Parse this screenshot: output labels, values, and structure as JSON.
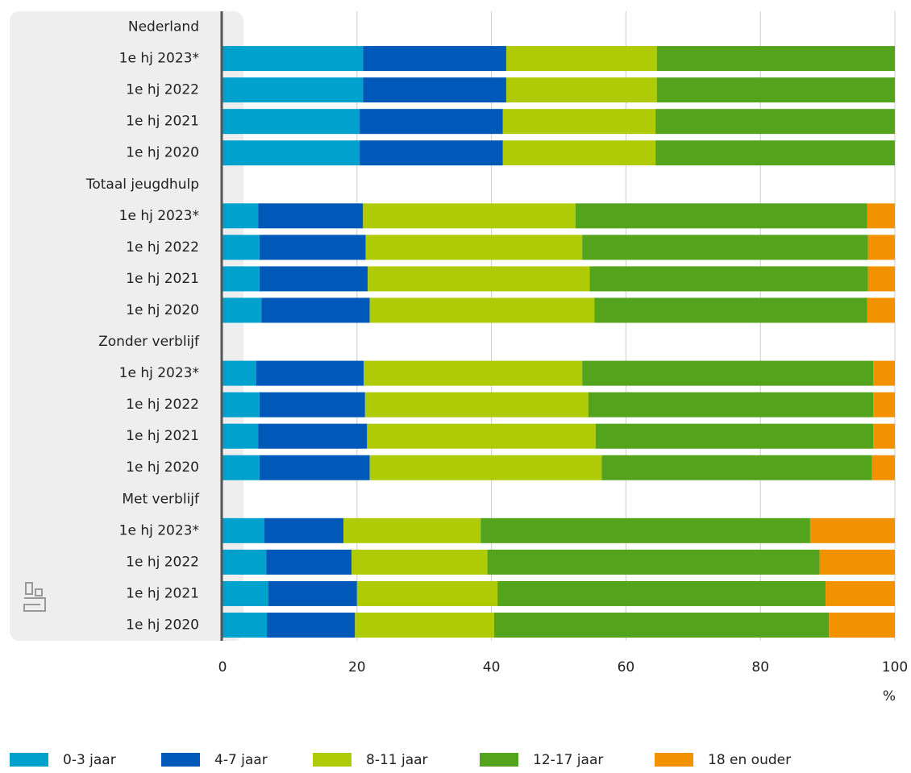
{
  "chart_data": {
    "type": "stacked-barh",
    "categories": [
      "Nederland",
      "1e hj 2023*",
      "1e hj 2022",
      "1e hj 2021",
      "1e hj 2020",
      "Totaal jeugdhulp",
      "1e hj 2023*",
      "1e hj 2022",
      "1e hj 2021",
      "1e hj 2020",
      "Zonder verblijf",
      "1e hj 2023*",
      "1e hj 2022",
      "1e hj 2021",
      "1e hj 2020",
      "Met verblijf",
      "1e hj 2023*",
      "1e hj 2022",
      "1e hj 2021",
      "1e hj 2020"
    ],
    "series": [
      {
        "name": "0-3 jaar",
        "color": "#00a1cd",
        "values": [
          null,
          20.9,
          20.9,
          20.4,
          20.4,
          null,
          5.3,
          5.5,
          5.5,
          5.8,
          null,
          5.0,
          5.5,
          5.3,
          5.5,
          null,
          6.2,
          6.5,
          6.8,
          6.6
        ]
      },
      {
        "name": "4-7 jaar",
        "color": "#0058b8",
        "values": [
          null,
          21.3,
          21.3,
          21.3,
          21.3,
          null,
          15.6,
          15.8,
          16.1,
          16.1,
          null,
          16.0,
          15.7,
          16.2,
          16.4,
          null,
          11.8,
          12.7,
          13.2,
          13.1
        ]
      },
      {
        "name": "8-11 jaar",
        "color": "#afcb05",
        "values": [
          null,
          22.4,
          22.4,
          22.7,
          22.7,
          null,
          31.6,
          32.2,
          33.0,
          33.4,
          null,
          32.5,
          33.2,
          34.0,
          34.5,
          null,
          20.4,
          20.2,
          20.9,
          20.7
        ]
      },
      {
        "name": "12-17 jaar",
        "color": "#53a31d",
        "values": [
          null,
          35.4,
          35.4,
          35.6,
          35.6,
          null,
          43.4,
          42.5,
          41.4,
          40.6,
          null,
          43.3,
          42.4,
          41.3,
          40.2,
          null,
          49.0,
          49.4,
          48.8,
          49.8
        ]
      },
      {
        "name": "18 en ouder",
        "color": "#f39200",
        "values": [
          null,
          0,
          0,
          0,
          0,
          null,
          4.1,
          4.0,
          4.0,
          4.1,
          null,
          3.2,
          3.2,
          3.2,
          3.4,
          null,
          12.6,
          11.2,
          10.3,
          9.8
        ]
      }
    ],
    "x_label": "%",
    "xlim": [
      0,
      100
    ],
    "xticks": [
      0,
      20,
      40,
      60,
      80,
      100
    ],
    "grid": true
  }
}
